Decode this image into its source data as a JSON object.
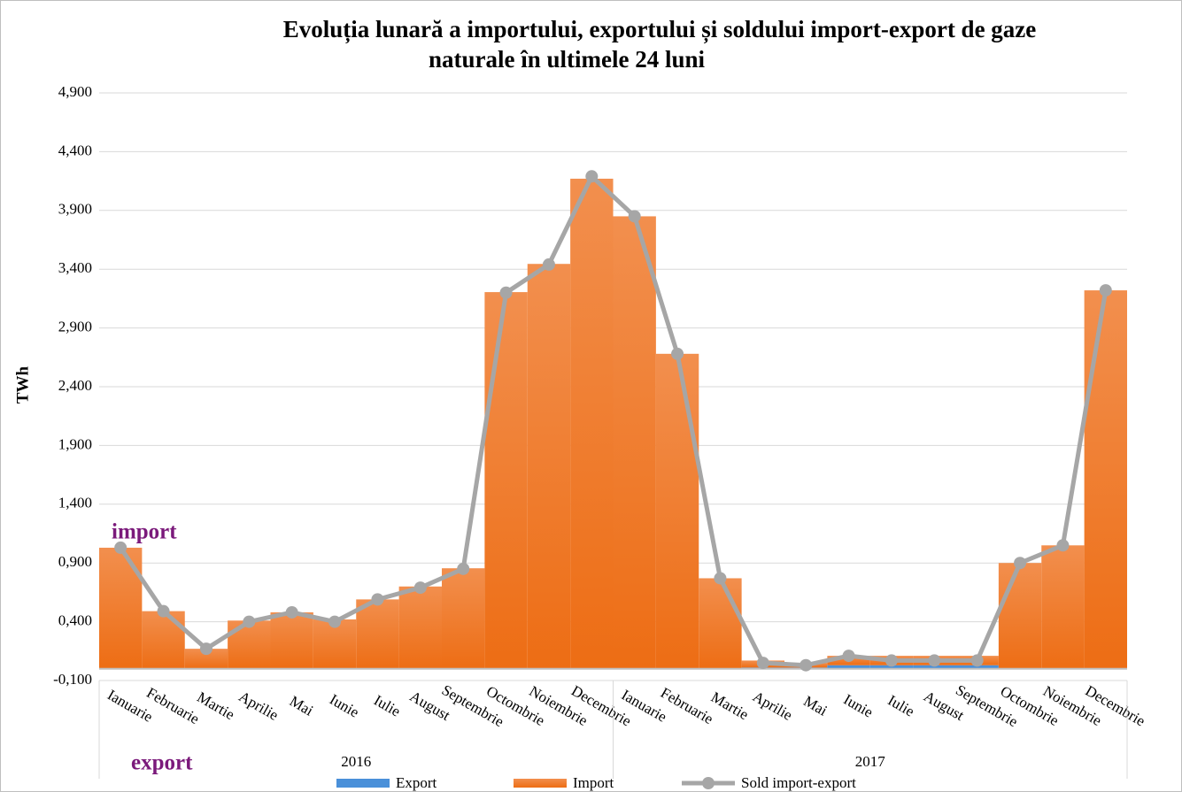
{
  "chart_data": {
    "type": "bar_line",
    "title": "Evoluția lunară a importului, exportului și soldului import-export de gaze",
    "subtitle": "naturale în ultimele 24 luni",
    "y_label": "TWh",
    "annotations": [
      "import",
      "export"
    ],
    "years": [
      "2016",
      "2017"
    ],
    "categories": [
      "Ianuarie",
      "Februarie",
      "Martie",
      "Aprilie",
      "Mai",
      "Iunie",
      "Iulie",
      "August",
      "Septembrie",
      "Octombrie",
      "Noiembrie",
      "Decembrie",
      "Ianuarie",
      "Februarie",
      "Martie",
      "Aprilie",
      "Mai",
      "Iunie",
      "Iulie",
      "August",
      "Septembrie",
      "Octombrie",
      "Noiembrie",
      "Decembrie"
    ],
    "series": [
      {
        "name": "Export",
        "color": "#4a90d9",
        "kind": "bar",
        "values": [
          0,
          0,
          0,
          0,
          0,
          0,
          0,
          0,
          0,
          0,
          0,
          0,
          0,
          0,
          0,
          0.01,
          0.01,
          0.03,
          0.03,
          0.03,
          0.03,
          0,
          0,
          0
        ]
      },
      {
        "name": "Import",
        "color": "#f07a2c",
        "kind": "bar",
        "values": [
          1.03,
          0.49,
          0.17,
          0.41,
          0.48,
          0.42,
          0.59,
          0.7,
          0.855,
          3.205,
          3.445,
          4.17,
          3.85,
          2.68,
          0.77,
          0.06,
          0.04,
          0.08,
          0.08,
          0.08,
          0.08,
          0.9,
          1.05,
          3.22
        ]
      },
      {
        "name": "Sold import-export",
        "color": "#a6a6a6",
        "kind": "line",
        "values": [
          1.03,
          0.49,
          0.17,
          0.4,
          0.48,
          0.4,
          0.59,
          0.69,
          0.85,
          3.2,
          3.44,
          4.19,
          3.85,
          2.68,
          0.77,
          0.05,
          0.03,
          0.11,
          0.07,
          0.07,
          0.07,
          0.9,
          1.05,
          3.22
        ]
      }
    ],
    "ylim": [
      -0.1,
      4.9
    ],
    "yticks": [
      {
        "value": -0.1,
        "label": "-0,100"
      },
      {
        "value": 0.4,
        "label": "0,400"
      },
      {
        "value": 0.9,
        "label": "0,900"
      },
      {
        "value": 1.4,
        "label": "1,400"
      },
      {
        "value": 1.9,
        "label": "1,900"
      },
      {
        "value": 2.4,
        "label": "2,400"
      },
      {
        "value": 2.9,
        "label": "2,900"
      },
      {
        "value": 3.4,
        "label": "3,400"
      },
      {
        "value": 3.9,
        "label": "3,900"
      },
      {
        "value": 4.4,
        "label": "4,400"
      },
      {
        "value": 4.9,
        "label": "4,900"
      }
    ],
    "grid": true
  }
}
